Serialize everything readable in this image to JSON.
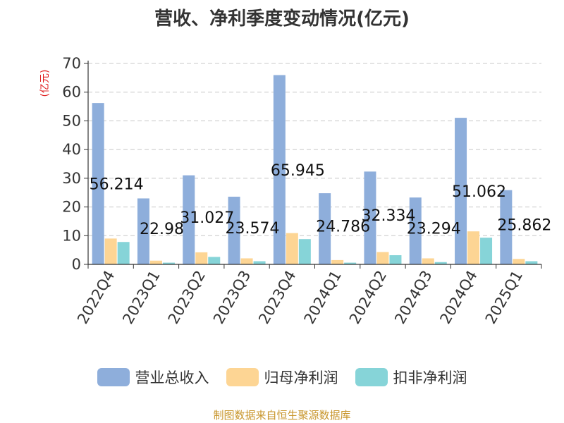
{
  "chart_data": {
    "type": "bar",
    "title": "营收、净利季度变动情况(亿元)",
    "ylabel": "(亿元)",
    "xlabel": "",
    "ylim": [
      0,
      70
    ],
    "yticks": [
      0,
      10,
      20,
      30,
      40,
      50,
      60,
      70
    ],
    "grid": true,
    "legend_position": "bottom",
    "categories": [
      "2022Q4",
      "2023Q1",
      "2023Q2",
      "2023Q3",
      "2023Q4",
      "2024Q1",
      "2024Q2",
      "2024Q3",
      "2024Q4",
      "2025Q1"
    ],
    "series": [
      {
        "name": "营业总收入",
        "color": "#8eaedb",
        "values": [
          56.214,
          22.98,
          31.027,
          23.574,
          65.945,
          24.786,
          32.334,
          23.294,
          51.062,
          25.862
        ]
      },
      {
        "name": "归母净利润",
        "color": "#fdd594",
        "values": [
          9.0,
          1.3,
          4.2,
          2.1,
          10.9,
          1.5,
          4.3,
          2.1,
          11.5,
          1.9
        ]
      },
      {
        "name": "扣非净利润",
        "color": "#86d4d8",
        "values": [
          7.8,
          0.6,
          2.6,
          1.1,
          8.8,
          0.6,
          3.2,
          0.8,
          9.3,
          1.1
        ]
      }
    ],
    "data_labels": [
      "56.214",
      "22.98",
      "31.027",
      "23.574",
      "65.945",
      "24.786",
      "32.334",
      "23.294",
      "51.062",
      "25.862"
    ]
  },
  "source": "制图数据来自恒生聚源数据库"
}
